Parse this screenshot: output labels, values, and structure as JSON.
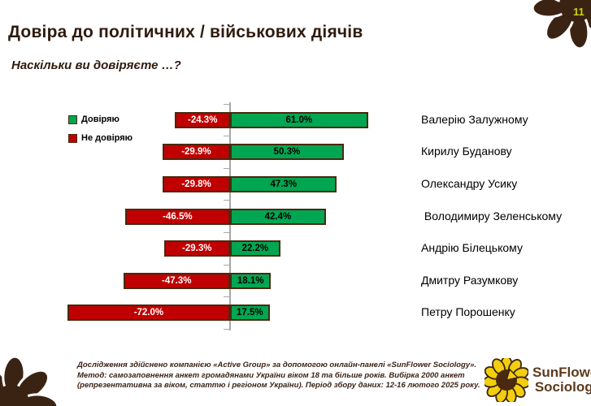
{
  "page": {
    "number": "11"
  },
  "header": {
    "title": "Довіра до політичних / військових діячів",
    "subtitle": "Наскільки ви довіряєте …?"
  },
  "legend": [
    {
      "label": "Довіряю",
      "color": "#00A651"
    },
    {
      "label": "Не довіряю",
      "color": "#C00000"
    }
  ],
  "chart_data": {
    "type": "bar",
    "orientation": "horizontal-diverging",
    "categories": [
      "Валерію Залужному",
      "Кирилу Буданову",
      "Олександру Усику",
      " Володимиру Зеленському",
      "Андрію Білецькому",
      "Дмитру Разумкову",
      "Петру Порошенку"
    ],
    "series": [
      {
        "name": "Довіряю",
        "color": "#00A651",
        "values": [
          61.0,
          50.3,
          47.3,
          42.4,
          22.2,
          18.1,
          17.5
        ]
      },
      {
        "name": "Не довіряю",
        "color": "#C00000",
        "values": [
          -24.3,
          -29.9,
          -29.8,
          -46.5,
          -29.3,
          -47.3,
          -72.0
        ]
      }
    ],
    "value_label_format": "one-decimal-percent",
    "xlim": [
      -100,
      100
    ],
    "grid": false,
    "legend_position": "top-left"
  },
  "footer": {
    "text": "Дослідження здійснено компанією «Active Group» за допомогою онлайн-панелі «SunFlower Sociology». Метод: самозаповнення анкет громадянами України віком 18 та більше років. Вибірка 2000 анкет (репрезентативна за віком, статтю і регіоном України). Період збору даних: 12-16 лютого 2025 року."
  },
  "logo": {
    "line1": "SunFlower",
    "line2": "Sociology"
  },
  "colors": {
    "trust_green": "#00A651",
    "distrust_red": "#C00000",
    "bar_border": "#4A2910",
    "title_brown": "#2F1B0E",
    "footer_brown": "#3B2314",
    "logo_brown": "#5D3A1B",
    "flower_brown": "#3B2314",
    "page_number_yellow": "#C9D30A",
    "axis_gray": "#A8A8A8",
    "sunflower_yellow": "#F2CE0D"
  }
}
